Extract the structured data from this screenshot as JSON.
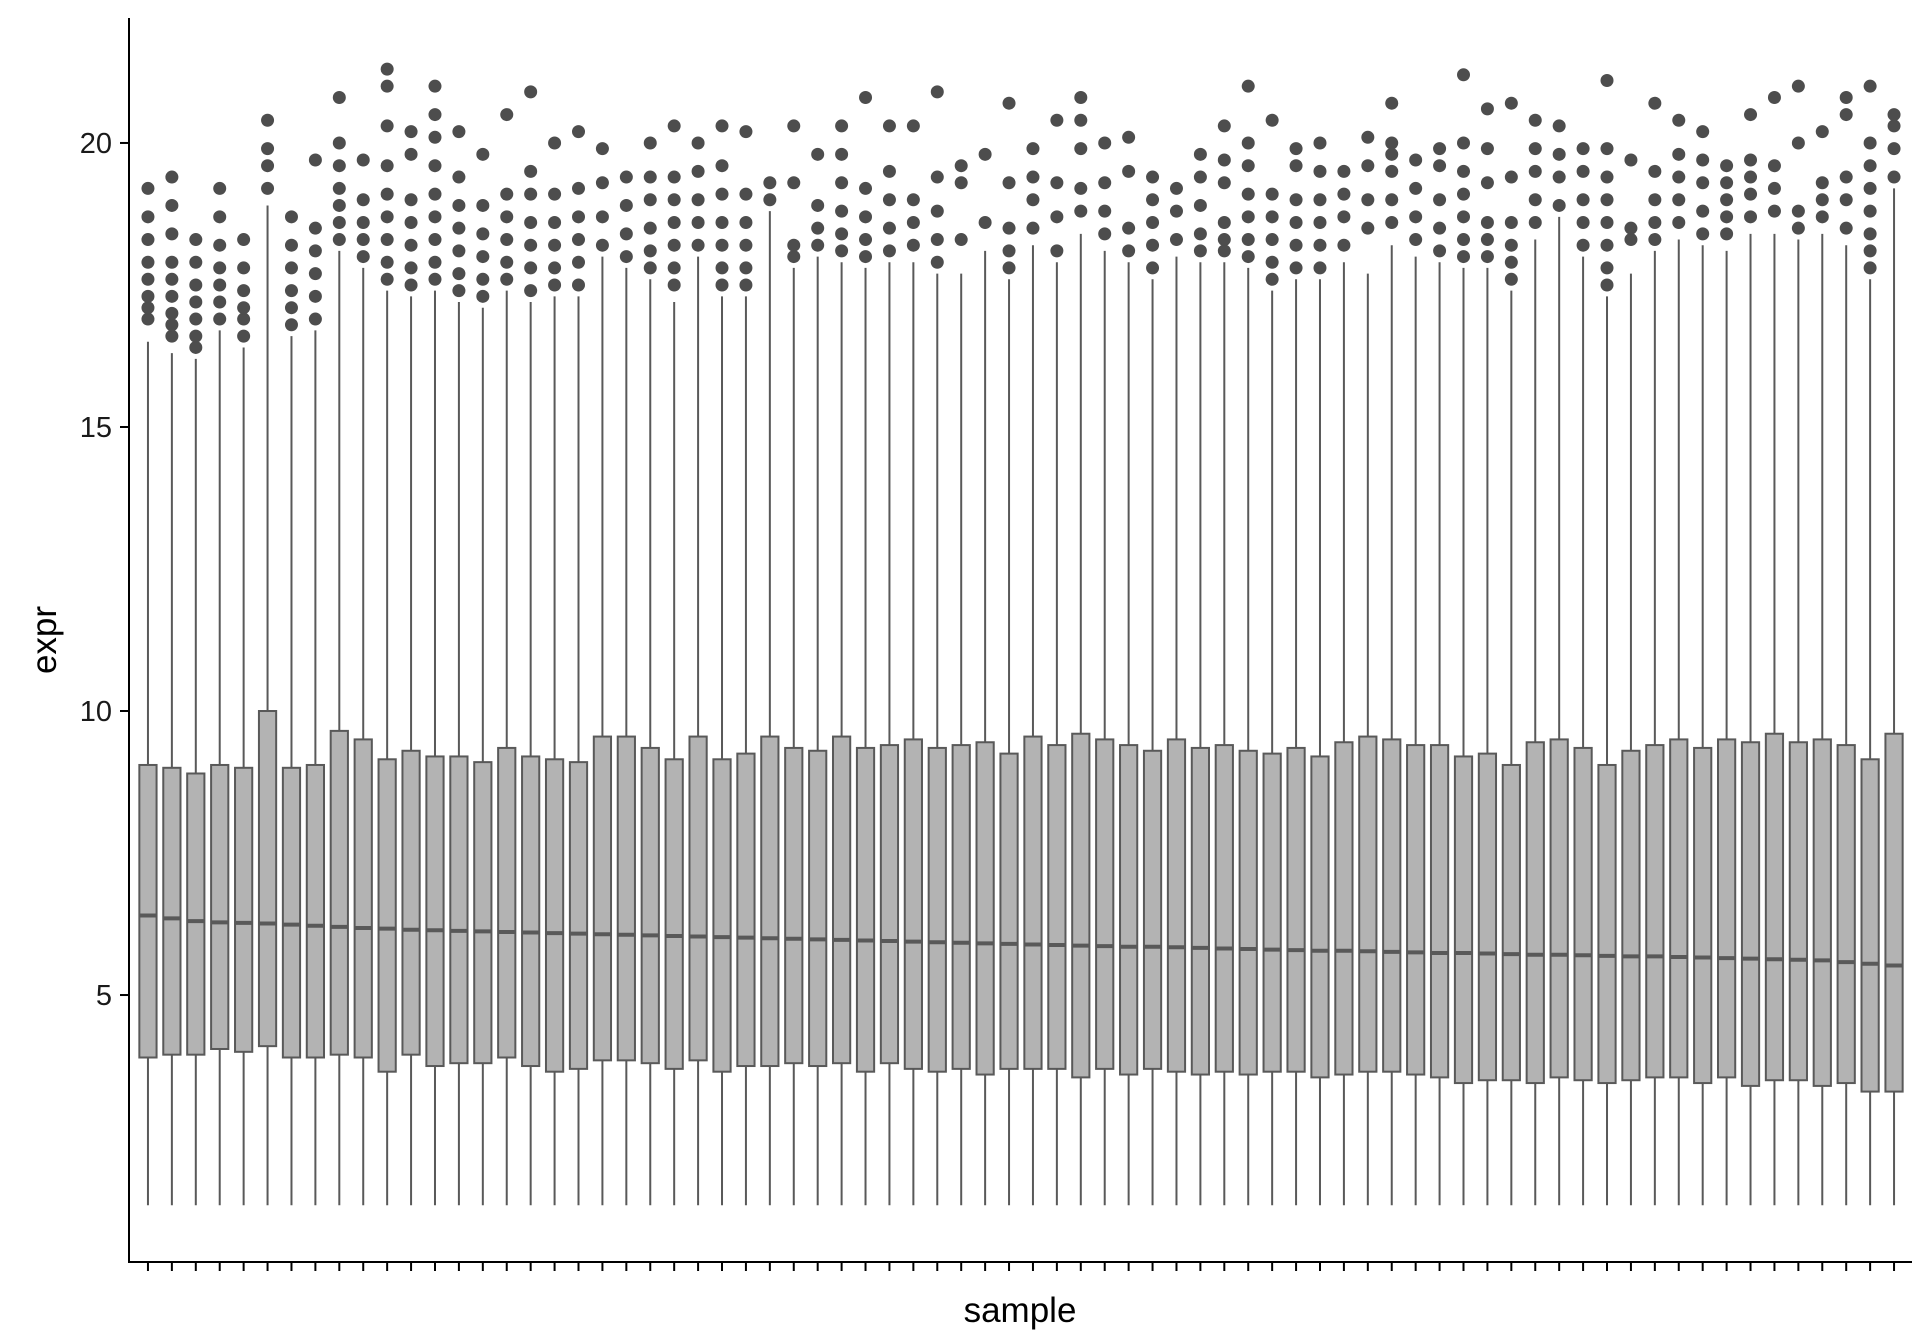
{
  "chart_data": {
    "type": "box",
    "xlabel": "sample",
    "ylabel": "expr",
    "ylim": [
      0.3,
      22.2
    ],
    "yticks": [
      5,
      10,
      15,
      20
    ],
    "x_tick_labels_shown": false,
    "grid": false,
    "legend": "none",
    "colors": {
      "box_fill": "#b3b3b3",
      "box_stroke": "#595959",
      "outlier": "#4d4d4d",
      "axis": "#000000"
    },
    "boxes": [
      {
        "q1": 3.9,
        "median": 6.4,
        "q3": 9.05,
        "whisker_low": 1.3,
        "whisker_high": 16.5,
        "outliers": [
          16.9,
          17.1,
          17.3,
          17.6,
          17.9,
          18.3,
          18.7,
          19.2
        ]
      },
      {
        "q1": 3.95,
        "median": 6.35,
        "q3": 9.0,
        "whisker_low": 1.3,
        "whisker_high": 16.3,
        "outliers": [
          16.6,
          16.8,
          17.0,
          17.3,
          17.6,
          17.9,
          18.4,
          18.9,
          19.4
        ]
      },
      {
        "q1": 3.95,
        "median": 6.3,
        "q3": 8.9,
        "whisker_low": 1.3,
        "whisker_high": 16.2,
        "outliers": [
          16.4,
          16.6,
          16.9,
          17.2,
          17.5,
          17.9,
          18.3
        ]
      },
      {
        "q1": 4.05,
        "median": 6.28,
        "q3": 9.05,
        "whisker_low": 1.3,
        "whisker_high": 16.7,
        "outliers": [
          16.9,
          17.2,
          17.5,
          17.8,
          18.2,
          18.7,
          19.2
        ]
      },
      {
        "q1": 4.0,
        "median": 6.27,
        "q3": 9.0,
        "whisker_low": 1.3,
        "whisker_high": 16.4,
        "outliers": [
          16.6,
          16.9,
          17.1,
          17.4,
          17.8,
          18.3
        ]
      },
      {
        "q1": 4.1,
        "median": 6.26,
        "q3": 10.0,
        "whisker_low": 1.3,
        "whisker_high": 18.9,
        "outliers": [
          19.2,
          19.6,
          19.9,
          20.4
        ]
      },
      {
        "q1": 3.9,
        "median": 6.24,
        "q3": 9.0,
        "whisker_low": 1.3,
        "whisker_high": 16.6,
        "outliers": [
          16.8,
          17.1,
          17.4,
          17.8,
          18.2,
          18.7
        ]
      },
      {
        "q1": 3.9,
        "median": 6.22,
        "q3": 9.05,
        "whisker_low": 1.3,
        "whisker_high": 16.7,
        "outliers": [
          16.9,
          17.3,
          17.7,
          18.1,
          18.5,
          19.7
        ]
      },
      {
        "q1": 3.95,
        "median": 6.2,
        "q3": 9.65,
        "whisker_low": 1.3,
        "whisker_high": 18.1,
        "outliers": [
          18.3,
          18.6,
          18.9,
          19.2,
          19.6,
          20.0,
          20.8
        ]
      },
      {
        "q1": 3.9,
        "median": 6.18,
        "q3": 9.5,
        "whisker_low": 1.3,
        "whisker_high": 17.8,
        "outliers": [
          18.0,
          18.3,
          18.6,
          19.0,
          19.7
        ]
      },
      {
        "q1": 3.65,
        "median": 6.17,
        "q3": 9.15,
        "whisker_low": 1.3,
        "whisker_high": 17.4,
        "outliers": [
          17.6,
          17.9,
          18.3,
          18.7,
          19.1,
          19.6,
          20.3,
          21.0,
          21.3
        ]
      },
      {
        "q1": 3.95,
        "median": 6.15,
        "q3": 9.3,
        "whisker_low": 1.3,
        "whisker_high": 17.3,
        "outliers": [
          17.5,
          17.8,
          18.2,
          18.6,
          19.0,
          19.8,
          20.2
        ]
      },
      {
        "q1": 3.75,
        "median": 6.14,
        "q3": 9.2,
        "whisker_low": 1.3,
        "whisker_high": 17.4,
        "outliers": [
          17.6,
          17.9,
          18.3,
          18.7,
          19.1,
          19.6,
          20.1,
          20.5,
          21.0
        ]
      },
      {
        "q1": 3.8,
        "median": 6.13,
        "q3": 9.2,
        "whisker_low": 1.3,
        "whisker_high": 17.2,
        "outliers": [
          17.4,
          17.7,
          18.1,
          18.5,
          18.9,
          19.4,
          20.2
        ]
      },
      {
        "q1": 3.8,
        "median": 6.12,
        "q3": 9.1,
        "whisker_low": 1.3,
        "whisker_high": 17.1,
        "outliers": [
          17.3,
          17.6,
          18.0,
          18.4,
          18.9,
          19.8
        ]
      },
      {
        "q1": 3.9,
        "median": 6.11,
        "q3": 9.35,
        "whisker_low": 1.3,
        "whisker_high": 17.4,
        "outliers": [
          17.6,
          17.9,
          18.3,
          18.7,
          19.1,
          20.5
        ]
      },
      {
        "q1": 3.75,
        "median": 6.1,
        "q3": 9.2,
        "whisker_low": 1.3,
        "whisker_high": 17.2,
        "outliers": [
          17.4,
          17.8,
          18.2,
          18.6,
          19.1,
          19.5,
          20.9
        ]
      },
      {
        "q1": 3.65,
        "median": 6.09,
        "q3": 9.15,
        "whisker_low": 1.3,
        "whisker_high": 17.3,
        "outliers": [
          17.5,
          17.8,
          18.2,
          18.6,
          19.1,
          20.0
        ]
      },
      {
        "q1": 3.7,
        "median": 6.08,
        "q3": 9.1,
        "whisker_low": 1.3,
        "whisker_high": 17.3,
        "outliers": [
          17.5,
          17.9,
          18.3,
          18.7,
          19.2,
          20.2
        ]
      },
      {
        "q1": 3.85,
        "median": 6.07,
        "q3": 9.55,
        "whisker_low": 1.3,
        "whisker_high": 18.0,
        "outliers": [
          18.2,
          18.7,
          19.3,
          19.9
        ]
      },
      {
        "q1": 3.85,
        "median": 6.06,
        "q3": 9.55,
        "whisker_low": 1.3,
        "whisker_high": 17.8,
        "outliers": [
          18.0,
          18.4,
          18.9,
          19.4
        ]
      },
      {
        "q1": 3.8,
        "median": 6.05,
        "q3": 9.35,
        "whisker_low": 1.3,
        "whisker_high": 17.6,
        "outliers": [
          17.8,
          18.1,
          18.5,
          19.0,
          19.4,
          20.0
        ]
      },
      {
        "q1": 3.7,
        "median": 6.04,
        "q3": 9.15,
        "whisker_low": 1.3,
        "whisker_high": 17.2,
        "outliers": [
          17.5,
          17.8,
          18.2,
          18.6,
          19.0,
          19.4,
          20.3
        ]
      },
      {
        "q1": 3.85,
        "median": 6.03,
        "q3": 9.55,
        "whisker_low": 1.3,
        "whisker_high": 18.0,
        "outliers": [
          18.2,
          18.6,
          19.0,
          19.5,
          20.0
        ]
      },
      {
        "q1": 3.65,
        "median": 6.02,
        "q3": 9.15,
        "whisker_low": 1.3,
        "whisker_high": 17.3,
        "outliers": [
          17.5,
          17.8,
          18.2,
          18.6,
          19.1,
          19.6,
          20.3
        ]
      },
      {
        "q1": 3.75,
        "median": 6.01,
        "q3": 9.25,
        "whisker_low": 1.3,
        "whisker_high": 17.3,
        "outliers": [
          17.5,
          17.8,
          18.2,
          18.6,
          19.1,
          20.2
        ]
      },
      {
        "q1": 3.75,
        "median": 6.0,
        "q3": 9.55,
        "whisker_low": 1.3,
        "whisker_high": 18.8,
        "outliers": [
          19.0,
          19.3
        ]
      },
      {
        "q1": 3.8,
        "median": 5.99,
        "q3": 9.35,
        "whisker_low": 1.3,
        "whisker_high": 17.8,
        "outliers": [
          18.0,
          18.2,
          19.3,
          20.3
        ]
      },
      {
        "q1": 3.75,
        "median": 5.98,
        "q3": 9.3,
        "whisker_low": 1.3,
        "whisker_high": 18.0,
        "outliers": [
          18.2,
          18.5,
          18.9,
          19.8
        ]
      },
      {
        "q1": 3.8,
        "median": 5.97,
        "q3": 9.55,
        "whisker_low": 1.3,
        "whisker_high": 17.9,
        "outliers": [
          18.1,
          18.4,
          18.8,
          19.3,
          19.8,
          20.3
        ]
      },
      {
        "q1": 3.65,
        "median": 5.96,
        "q3": 9.35,
        "whisker_low": 1.3,
        "whisker_high": 17.8,
        "outliers": [
          18.0,
          18.3,
          18.7,
          19.2,
          20.8
        ]
      },
      {
        "q1": 3.8,
        "median": 5.95,
        "q3": 9.4,
        "whisker_low": 1.3,
        "whisker_high": 17.9,
        "outliers": [
          18.1,
          18.5,
          19.0,
          19.5,
          20.3
        ]
      },
      {
        "q1": 3.7,
        "median": 5.94,
        "q3": 9.5,
        "whisker_low": 1.3,
        "whisker_high": 17.9,
        "outliers": [
          18.2,
          18.6,
          19.0,
          20.3
        ]
      },
      {
        "q1": 3.65,
        "median": 5.93,
        "q3": 9.35,
        "whisker_low": 1.3,
        "whisker_high": 17.7,
        "outliers": [
          17.9,
          18.3,
          18.8,
          19.4,
          20.9
        ]
      },
      {
        "q1": 3.7,
        "median": 5.92,
        "q3": 9.4,
        "whisker_low": 1.3,
        "whisker_high": 17.7,
        "outliers": [
          18.3,
          19.3,
          19.6
        ]
      },
      {
        "q1": 3.6,
        "median": 5.91,
        "q3": 9.45,
        "whisker_low": 1.3,
        "whisker_high": 18.1,
        "outliers": [
          18.6,
          19.8
        ]
      },
      {
        "q1": 3.7,
        "median": 5.9,
        "q3": 9.25,
        "whisker_low": 1.3,
        "whisker_high": 17.6,
        "outliers": [
          17.8,
          18.1,
          18.5,
          19.3,
          20.7
        ]
      },
      {
        "q1": 3.7,
        "median": 5.89,
        "q3": 9.55,
        "whisker_low": 1.3,
        "whisker_high": 18.2,
        "outliers": [
          18.5,
          19.0,
          19.4,
          19.9
        ]
      },
      {
        "q1": 3.7,
        "median": 5.88,
        "q3": 9.4,
        "whisker_low": 1.3,
        "whisker_high": 17.9,
        "outliers": [
          18.1,
          18.7,
          19.3,
          20.4
        ]
      },
      {
        "q1": 3.55,
        "median": 5.87,
        "q3": 9.6,
        "whisker_low": 1.3,
        "whisker_high": 18.4,
        "outliers": [
          18.8,
          19.2,
          19.9,
          20.4,
          20.8
        ]
      },
      {
        "q1": 3.7,
        "median": 5.86,
        "q3": 9.5,
        "whisker_low": 1.3,
        "whisker_high": 18.1,
        "outliers": [
          18.4,
          18.8,
          19.3,
          20.0
        ]
      },
      {
        "q1": 3.6,
        "median": 5.85,
        "q3": 9.4,
        "whisker_low": 1.3,
        "whisker_high": 17.9,
        "outliers": [
          18.1,
          18.5,
          19.5,
          20.1
        ]
      },
      {
        "q1": 3.7,
        "median": 5.85,
        "q3": 9.3,
        "whisker_low": 1.3,
        "whisker_high": 17.6,
        "outliers": [
          17.8,
          18.2,
          18.6,
          19.0,
          19.4
        ]
      },
      {
        "q1": 3.65,
        "median": 5.84,
        "q3": 9.5,
        "whisker_low": 1.3,
        "whisker_high": 18.0,
        "outliers": [
          18.3,
          18.8,
          19.2
        ]
      },
      {
        "q1": 3.6,
        "median": 5.83,
        "q3": 9.35,
        "whisker_low": 1.3,
        "whisker_high": 17.9,
        "outliers": [
          18.1,
          18.4,
          18.9,
          19.4,
          19.8
        ]
      },
      {
        "q1": 3.65,
        "median": 5.82,
        "q3": 9.4,
        "whisker_low": 1.3,
        "whisker_high": 17.9,
        "outliers": [
          18.1,
          18.3,
          18.6,
          19.3,
          19.7,
          20.3
        ]
      },
      {
        "q1": 3.6,
        "median": 5.81,
        "q3": 9.3,
        "whisker_low": 1.3,
        "whisker_high": 17.8,
        "outliers": [
          18.0,
          18.3,
          18.7,
          19.1,
          19.6,
          20.0,
          21.0
        ]
      },
      {
        "q1": 3.65,
        "median": 5.8,
        "q3": 9.25,
        "whisker_low": 1.3,
        "whisker_high": 17.4,
        "outliers": [
          17.6,
          17.9,
          18.3,
          18.7,
          19.1,
          20.4
        ]
      },
      {
        "q1": 3.65,
        "median": 5.79,
        "q3": 9.35,
        "whisker_low": 1.3,
        "whisker_high": 17.6,
        "outliers": [
          17.8,
          18.2,
          18.6,
          19.0,
          19.6,
          19.9
        ]
      },
      {
        "q1": 3.55,
        "median": 5.78,
        "q3": 9.2,
        "whisker_low": 1.3,
        "whisker_high": 17.6,
        "outliers": [
          17.8,
          18.2,
          18.6,
          19.0,
          19.5,
          20.0
        ]
      },
      {
        "q1": 3.6,
        "median": 5.78,
        "q3": 9.45,
        "whisker_low": 1.3,
        "whisker_high": 17.9,
        "outliers": [
          18.2,
          18.7,
          19.1,
          19.5
        ]
      },
      {
        "q1": 3.65,
        "median": 5.77,
        "q3": 9.55,
        "whisker_low": 1.3,
        "whisker_high": 17.7,
        "outliers": [
          18.5,
          19.0,
          19.6,
          20.1
        ]
      },
      {
        "q1": 3.65,
        "median": 5.76,
        "q3": 9.5,
        "whisker_low": 1.3,
        "whisker_high": 18.2,
        "outliers": [
          18.6,
          19.0,
          19.5,
          19.8,
          20.0,
          20.7
        ]
      },
      {
        "q1": 3.6,
        "median": 5.75,
        "q3": 9.4,
        "whisker_low": 1.3,
        "whisker_high": 18.0,
        "outliers": [
          18.3,
          18.7,
          19.2,
          19.7
        ]
      },
      {
        "q1": 3.55,
        "median": 5.74,
        "q3": 9.4,
        "whisker_low": 1.3,
        "whisker_high": 17.9,
        "outliers": [
          18.1,
          18.5,
          19.0,
          19.6,
          19.9
        ]
      },
      {
        "q1": 3.45,
        "median": 5.74,
        "q3": 9.2,
        "whisker_low": 1.3,
        "whisker_high": 17.8,
        "outliers": [
          18.0,
          18.3,
          18.7,
          19.1,
          19.5,
          20.0,
          21.2
        ]
      },
      {
        "q1": 3.5,
        "median": 5.73,
        "q3": 9.25,
        "whisker_low": 1.3,
        "whisker_high": 17.8,
        "outliers": [
          18.0,
          18.3,
          18.6,
          19.3,
          19.9,
          20.6
        ]
      },
      {
        "q1": 3.5,
        "median": 5.72,
        "q3": 9.05,
        "whisker_low": 1.3,
        "whisker_high": 17.4,
        "outliers": [
          17.6,
          17.9,
          18.2,
          18.6,
          19.4,
          20.7
        ]
      },
      {
        "q1": 3.45,
        "median": 5.71,
        "q3": 9.45,
        "whisker_low": 1.3,
        "whisker_high": 18.3,
        "outliers": [
          18.6,
          19.0,
          19.5,
          19.9,
          20.4
        ]
      },
      {
        "q1": 3.55,
        "median": 5.71,
        "q3": 9.5,
        "whisker_low": 1.3,
        "whisker_high": 18.7,
        "outliers": [
          18.9,
          19.4,
          19.8,
          20.3
        ]
      },
      {
        "q1": 3.5,
        "median": 5.7,
        "q3": 9.35,
        "whisker_low": 1.3,
        "whisker_high": 18.0,
        "outliers": [
          18.2,
          18.6,
          19.0,
          19.5,
          19.9
        ]
      },
      {
        "q1": 3.45,
        "median": 5.69,
        "q3": 9.05,
        "whisker_low": 1.3,
        "whisker_high": 17.3,
        "outliers": [
          17.5,
          17.8,
          18.2,
          18.6,
          19.0,
          19.4,
          19.9,
          21.1
        ]
      },
      {
        "q1": 3.5,
        "median": 5.68,
        "q3": 9.3,
        "whisker_low": 1.3,
        "whisker_high": 17.7,
        "outliers": [
          18.3,
          18.5,
          19.7
        ]
      },
      {
        "q1": 3.55,
        "median": 5.68,
        "q3": 9.4,
        "whisker_low": 1.3,
        "whisker_high": 18.1,
        "outliers": [
          18.3,
          18.6,
          19.0,
          19.5,
          20.7
        ]
      },
      {
        "q1": 3.55,
        "median": 5.67,
        "q3": 9.5,
        "whisker_low": 1.3,
        "whisker_high": 18.3,
        "outliers": [
          18.6,
          19.0,
          19.4,
          19.8,
          20.4
        ]
      },
      {
        "q1": 3.45,
        "median": 5.66,
        "q3": 9.35,
        "whisker_low": 1.3,
        "whisker_high": 18.2,
        "outliers": [
          18.4,
          18.8,
          19.3,
          19.7,
          20.2
        ]
      },
      {
        "q1": 3.55,
        "median": 5.65,
        "q3": 9.5,
        "whisker_low": 1.3,
        "whisker_high": 18.1,
        "outliers": [
          18.4,
          18.7,
          19.0,
          19.3,
          19.6
        ]
      },
      {
        "q1": 3.4,
        "median": 5.64,
        "q3": 9.45,
        "whisker_low": 1.3,
        "whisker_high": 18.4,
        "outliers": [
          18.7,
          19.1,
          19.4,
          19.7,
          20.5
        ]
      },
      {
        "q1": 3.5,
        "median": 5.63,
        "q3": 9.6,
        "whisker_low": 1.3,
        "whisker_high": 18.4,
        "outliers": [
          18.8,
          19.2,
          19.6,
          20.8
        ]
      },
      {
        "q1": 3.5,
        "median": 5.62,
        "q3": 9.45,
        "whisker_low": 1.3,
        "whisker_high": 18.3,
        "outliers": [
          18.5,
          18.8,
          20.0,
          21.0
        ]
      },
      {
        "q1": 3.4,
        "median": 5.61,
        "q3": 9.5,
        "whisker_low": 1.3,
        "whisker_high": 18.4,
        "outliers": [
          18.7,
          19.0,
          19.3,
          20.2
        ]
      },
      {
        "q1": 3.45,
        "median": 5.58,
        "q3": 9.4,
        "whisker_low": 1.3,
        "whisker_high": 18.2,
        "outliers": [
          18.5,
          19.0,
          19.4,
          20.5,
          20.8
        ]
      },
      {
        "q1": 3.3,
        "median": 5.55,
        "q3": 9.15,
        "whisker_low": 1.3,
        "whisker_high": 17.6,
        "outliers": [
          17.8,
          18.1,
          18.4,
          18.8,
          19.2,
          19.6,
          20.0,
          21.0
        ]
      },
      {
        "q1": 3.3,
        "median": 5.52,
        "q3": 9.6,
        "whisker_low": 1.3,
        "whisker_high": 19.2,
        "outliers": [
          19.4,
          19.9,
          20.3,
          20.5
        ]
      }
    ]
  }
}
